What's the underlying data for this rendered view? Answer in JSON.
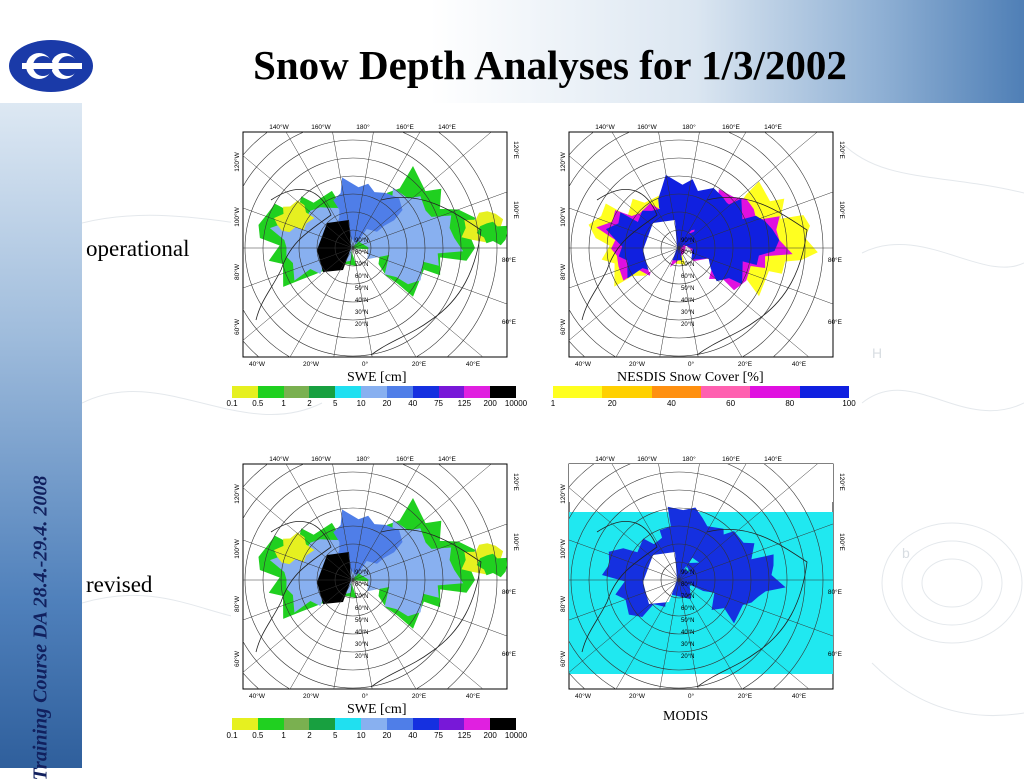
{
  "header": {
    "title": "Snow Depth Analyses for 1/3/2002"
  },
  "sidebar": {
    "text": "Training Course DA 28.4.-29.4. 2008"
  },
  "rows": {
    "operational": "operational",
    "revised": "revised"
  },
  "map_labels": {
    "top": [
      "140°W",
      "160°W",
      "180°",
      "160°E",
      "140°E"
    ],
    "left": [
      "120°W",
      "100°W",
      "80°W",
      "60°W"
    ],
    "right_top": [
      "120°E",
      "100°E"
    ],
    "right": [
      "80°E",
      "60°E"
    ],
    "bottom": [
      "40°W",
      "20°W",
      "0°",
      "20°E",
      "40°E"
    ],
    "lat": [
      "90°N",
      "80°N",
      "70°N",
      "60°N",
      "50°N",
      "40°N",
      "30°N",
      "20°N"
    ]
  },
  "captions": {
    "swe_top": "SWE [cm]",
    "nesdis": "NESDIS Snow Cover [%]",
    "swe_bottom": "SWE [cm]",
    "modis": "MODIS"
  },
  "swe_scale": {
    "ticks": [
      "0.1",
      "0.5",
      "1",
      "2",
      "5",
      "10",
      "20",
      "40",
      "75",
      "125",
      "200",
      "10000"
    ],
    "colors": [
      "#e6f020",
      "#20d020",
      "#7ab050",
      "#18a040",
      "#20e0f0",
      "#88b0f0",
      "#4f7ee8",
      "#1530e0",
      "#7818d8",
      "#e020e0",
      "#000000"
    ]
  },
  "nesdis_scale": {
    "ticks": [
      "1",
      "20",
      "40",
      "60",
      "80",
      "100"
    ],
    "colors": [
      "#ffff20",
      "#ffd000",
      "#ff9010",
      "#ff60b0",
      "#e010e0",
      "#1020e0"
    ]
  },
  "colors": {
    "land_line": "#222222",
    "grid": "#333333"
  }
}
